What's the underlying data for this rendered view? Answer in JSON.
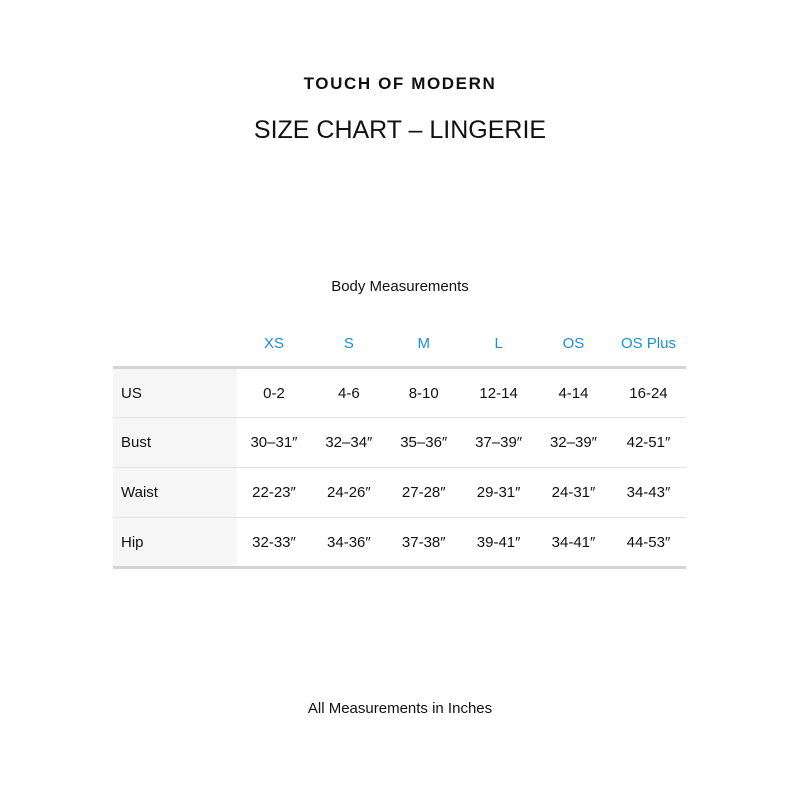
{
  "brand": "TOUCH OF MODERN",
  "title": "SIZE CHART – LINGERIE",
  "subtitle": "Body Measurements",
  "footer": "All Measurements in Inches",
  "accent_color": "#1a8fd6",
  "table": {
    "columns": [
      "XS",
      "S",
      "M",
      "L",
      "OS",
      "OS Plus"
    ],
    "rows": [
      {
        "label": "US",
        "values": [
          "0-2",
          "4-6",
          "8-10",
          "12-14",
          "4-14",
          "16-24"
        ]
      },
      {
        "label": "Bust",
        "values": [
          "30–31″",
          "32–34″",
          "35–36″",
          "37–39″",
          "32–39″",
          "42-51″"
        ]
      },
      {
        "label": "Waist",
        "values": [
          "22-23″",
          "24-26″",
          "27-28″",
          "29-31″",
          "24-31″",
          "34-43″"
        ]
      },
      {
        "label": "Hip",
        "values": [
          "32-33″",
          "34-36″",
          "37-38″",
          "39-41″",
          "34-41″",
          "44-53″"
        ]
      }
    ]
  }
}
